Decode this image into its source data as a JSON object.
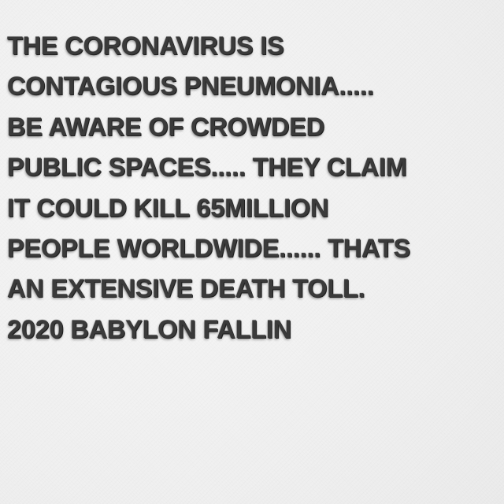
{
  "note": {
    "lines": [
      "THE CORONAVIRUS IS",
      "CONTAGIOUS PNEUMONIA.....",
      "BE AWARE OF CROWDED",
      "PUBLIC SPACES..... THEY CLAIM",
      "IT COULD KILL 65MILLION",
      "PEOPLE WORLDWIDE...... THATS",
      "AN EXTENSIVE DEATH TOLL.",
      "2020 BABYLON FALLIN"
    ]
  },
  "colors": {
    "background": "#f2f2f2",
    "text": "#3a3a3a"
  }
}
